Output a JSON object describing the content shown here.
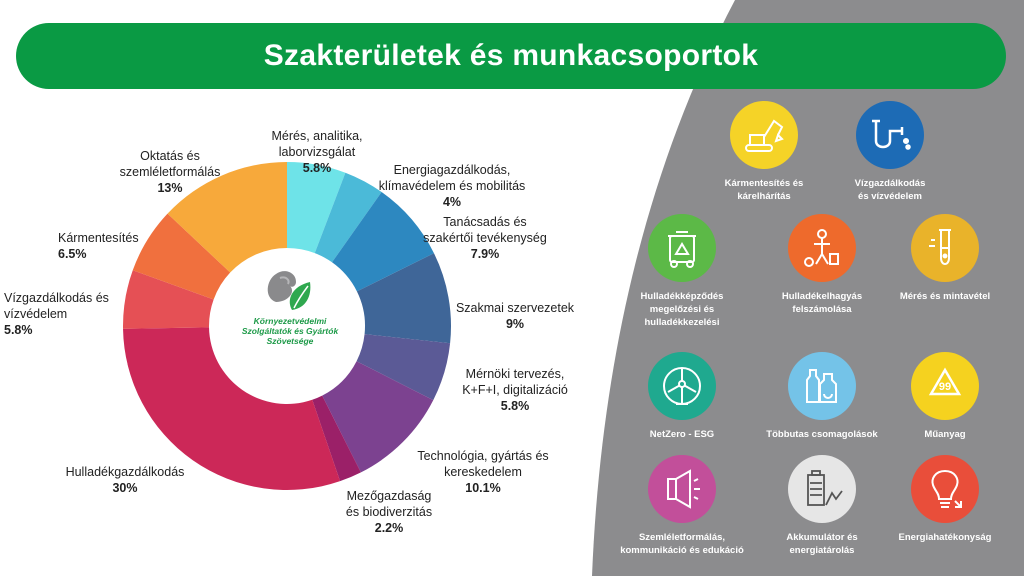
{
  "header": {
    "title": "Szakterületek és munkacsoportok"
  },
  "logo": {
    "lines": [
      "Környezetvédelmi",
      "Szolgáltatók és Gyártók",
      "Szövetsége"
    ]
  },
  "chart_data": {
    "type": "pie",
    "title": "",
    "categories": [
      "Mérés, analitika, laborvizsgálat",
      "Energiagazdálkodás, klímavédelem és mobilitás",
      "Tanácsadás és szakértői tevékenység",
      "Szakmai szervezetek",
      "Mérnöki tervezés, K+F+I, digitalizáció",
      "Technológia, gyártás és kereskedelem",
      "Mezőgazdaság és biodiverzitás",
      "Hulladékgazdálkodás",
      "Vízgazdálkodás és vízvédelem",
      "Kármentesítés",
      "Oktatás és szemléletformálás"
    ],
    "values": [
      5.8,
      4,
      7.9,
      9,
      5.8,
      10.1,
      2.2,
      30,
      5.8,
      6.5,
      13
    ],
    "value_labels": [
      "5.8%",
      "4%",
      "7.9%",
      "9%",
      "5.8%",
      "10.1%",
      "2.2%",
      "30%",
      "5.8%",
      "6.5%",
      "13%"
    ],
    "colors": [
      "#6ee3e8",
      "#4bbad8",
      "#2d88c0",
      "#3f6698",
      "#5b5a96",
      "#7c4290",
      "#9b2068",
      "#cc2858",
      "#e55055",
      "#f0703e",
      "#f7a93b"
    ]
  },
  "labels": [
    {
      "lines": [
        "Mérés, analitika,",
        "laborvizsgálat"
      ],
      "pct": "5.8%"
    },
    {
      "lines": [
        "Energiagazdálkodás,",
        "klímavédelem és mobilitás"
      ],
      "pct": "4%"
    },
    {
      "lines": [
        "Tanácsadás és",
        "szakértői tevékenység"
      ],
      "pct": "7.9%"
    },
    {
      "lines": [
        "Szakmai szervezetek"
      ],
      "pct": "9%"
    },
    {
      "lines": [
        "Mérnöki tervezés,",
        "K+F+I, digitalizáció"
      ],
      "pct": "5.8%"
    },
    {
      "lines": [
        "Technológia, gyártás és",
        "kereskedelem"
      ],
      "pct": "10.1%"
    },
    {
      "lines": [
        "Mezőgazdaság",
        "és biodiverzitás"
      ],
      "pct": "2.2%"
    },
    {
      "lines": [
        "Hulladékgazdálkodás"
      ],
      "pct": "30%"
    },
    {
      "lines": [
        "Vízgazdálkodás és",
        "vízvédelem"
      ],
      "pct": "5.8%"
    },
    {
      "lines": [
        "Kármentesítés"
      ],
      "pct": "6.5%"
    },
    {
      "lines": [
        "Oktatás és",
        "szemléletformálás"
      ],
      "pct": "13%"
    }
  ],
  "workgroups": [
    {
      "lines": [
        "Kármentesítés és",
        "kárelhárítás"
      ],
      "color": "#f5d327",
      "icon": "excavator-icon"
    },
    {
      "lines": [
        "Vízgazdálkodás",
        "és vízvédelem"
      ],
      "color": "#1d6bb5",
      "icon": "water-pipe-icon"
    },
    {
      "lines": [
        "Hulladékképződés",
        "megelőzési és",
        "hulladékkezelési"
      ],
      "color": "#5cb947",
      "icon": "recycle-bin-icon"
    },
    {
      "lines": [
        "Hulladékelhagyás",
        "felszámolása"
      ],
      "color": "#ee6a2c",
      "icon": "litter-icon"
    },
    {
      "lines": [
        "Mérés és mintavétel"
      ],
      "color": "#e9b32a",
      "icon": "test-tube-icon"
    },
    {
      "lines": [
        "NetZero - ESG"
      ],
      "color": "#1fa98f",
      "icon": "wind-turbine-icon"
    },
    {
      "lines": [
        "Többutas csomagolások"
      ],
      "color": "#74c3e8",
      "icon": "bottles-icon"
    },
    {
      "lines": [
        "Műanyag"
      ],
      "color": "#f5d21f",
      "icon": "plastic-recycle-icon"
    },
    {
      "lines": [
        "Szemléletformálás,",
        "kommunikáció és edukáció"
      ],
      "color": "#c24f9a",
      "icon": "megaphone-icon"
    },
    {
      "lines": [
        "Akkumulátor és",
        "energiatárolás"
      ],
      "color": "#e6e6e6",
      "icon": "battery-icon"
    },
    {
      "lines": [
        "Energiahatékonyság"
      ],
      "color": "#e94e3a",
      "icon": "lightbulb-icon"
    }
  ]
}
